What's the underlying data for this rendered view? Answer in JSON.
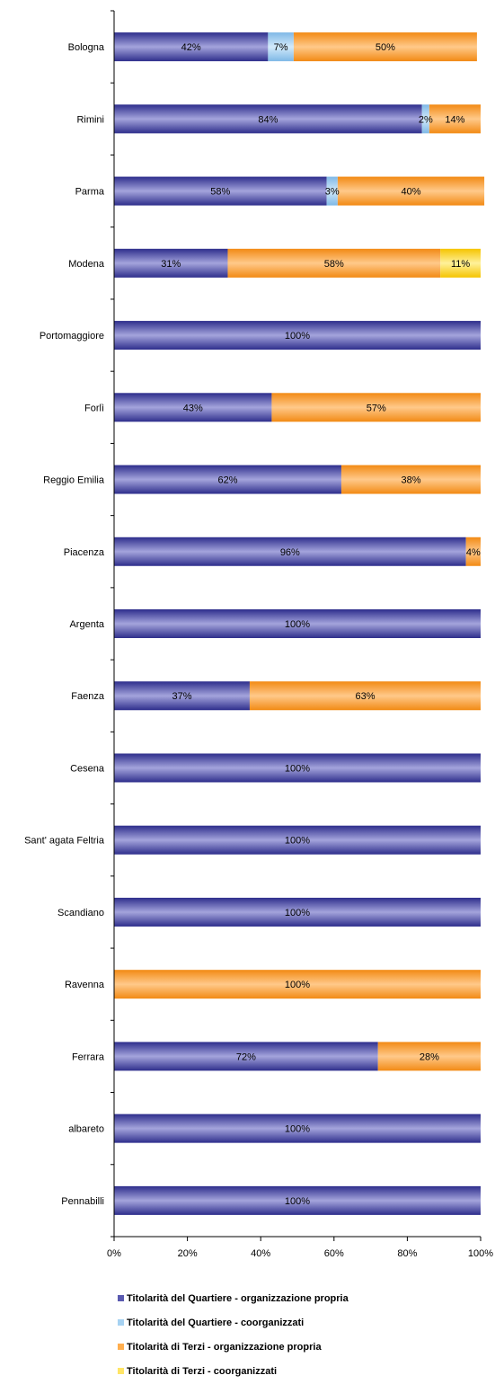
{
  "chart_data": {
    "type": "bar",
    "orientation": "horizontal",
    "stacked": "percent",
    "title": "",
    "xlabel": "",
    "ylabel": "",
    "xlim": [
      0,
      100
    ],
    "x_ticks": [
      "0%",
      "20%",
      "40%",
      "60%",
      "80%",
      "100%"
    ],
    "grid": false,
    "legend_position": "bottom",
    "categories": [
      "Bologna",
      "Rimini",
      "Parma",
      "Modena",
      "Portomaggiore",
      "Forlì",
      "Reggio Emilia",
      "Piacenza",
      "Argenta",
      "Faenza",
      "Cesena",
      "Sant' agata Feltria",
      "Scandiano",
      "Ravenna",
      "Ferrara",
      "albareto",
      "Pennabilli"
    ],
    "series": [
      {
        "name": "Titolarità del Quartiere - organizzazione propria",
        "color": "#6E6EBE",
        "values": [
          42,
          84,
          58,
          31,
          100,
          43,
          62,
          96,
          100,
          37,
          100,
          100,
          100,
          0,
          72,
          100,
          100
        ]
      },
      {
        "name": "Titolarità del Quartiere - coorganizzati",
        "color": "#A6D2F2",
        "values": [
          7,
          2,
          3,
          0,
          0,
          0,
          0,
          0,
          0,
          0,
          0,
          0,
          0,
          0,
          0,
          0,
          0
        ]
      },
      {
        "name": "Titolarità di Terzi - organizzazione propria",
        "color": "#FFAE4E",
        "values": [
          50,
          14,
          40,
          58,
          0,
          57,
          38,
          4,
          0,
          63,
          0,
          0,
          0,
          100,
          28,
          0,
          0
        ]
      },
      {
        "name": "Titolarità di Terzi - coorganizzati",
        "color": "#FFE566",
        "values": [
          0,
          0,
          0,
          11,
          0,
          0,
          0,
          0,
          0,
          0,
          0,
          0,
          0,
          0,
          0,
          0,
          0
        ]
      }
    ],
    "data_labels": [
      [
        "42%",
        "84%",
        "58%",
        "31%",
        "100%",
        "43%",
        "62%",
        "96%",
        "100%",
        "37%",
        "100%",
        "100%",
        "100%",
        "",
        "72%",
        "100%",
        "100%"
      ],
      [
        "7%",
        "2%",
        "3%",
        "",
        "",
        "",
        "",
        "",
        "",
        "",
        "",
        "",
        "",
        "",
        "",
        "",
        ""
      ],
      [
        "50%",
        "14%",
        "40%",
        "58%",
        "",
        "57%",
        "38%",
        "4%",
        "",
        "63%",
        "",
        "",
        "",
        "100%",
        "28%",
        "",
        ""
      ],
      [
        "",
        "",
        "",
        "11%",
        "",
        "",
        "",
        "",
        "",
        "",
        "",
        "",
        "",
        "",
        "",
        "",
        ""
      ]
    ]
  },
  "legend": {
    "items": [
      {
        "label": "Titolarità del Quartiere - organizzazione propria",
        "color": "#6E6EBE"
      },
      {
        "label": "Titolarità del Quartiere - coorganizzati",
        "color": "#A6D2F2"
      },
      {
        "label": "Titolarità di Terzi - organizzazione propria",
        "color": "#FFAE4E"
      },
      {
        "label": "Titolarità di Terzi - coorganizzati",
        "color": "#FFE566"
      }
    ]
  }
}
